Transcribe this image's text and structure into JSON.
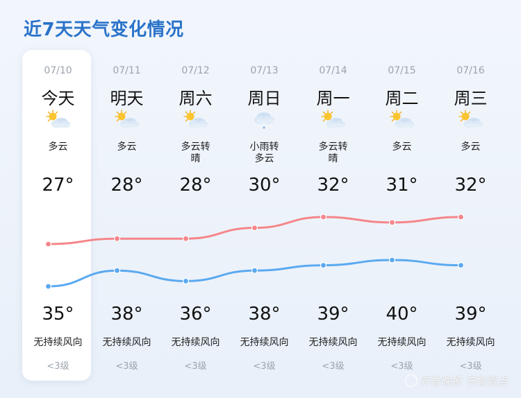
{
  "title": "近7天天气变化情况",
  "days": [
    {
      "date": "07/10",
      "name": "今天",
      "icon": "partly-cloudy-icon",
      "cond": [
        "多云"
      ],
      "hi": "27°",
      "lo": "35°",
      "wind": "无持续风向",
      "level": "<3级"
    },
    {
      "date": "07/11",
      "name": "明天",
      "icon": "partly-cloudy-icon",
      "cond": [
        "多云"
      ],
      "hi": "28°",
      "lo": "38°",
      "wind": "无持续风向",
      "level": "<3级"
    },
    {
      "date": "07/12",
      "name": "周六",
      "icon": "partly-cloudy-icon",
      "cond": [
        "多云转",
        "晴"
      ],
      "hi": "28°",
      "lo": "36°",
      "wind": "无持续风向",
      "level": "<3级"
    },
    {
      "date": "07/13",
      "name": "周日",
      "icon": "light-rain-icon",
      "cond": [
        "小雨转",
        "多云"
      ],
      "hi": "30°",
      "lo": "38°",
      "wind": "无持续风向",
      "level": "<3级"
    },
    {
      "date": "07/14",
      "name": "周一",
      "icon": "partly-cloudy-icon",
      "cond": [
        "多云转",
        "晴"
      ],
      "hi": "32°",
      "lo": "39°",
      "wind": "无持续风向",
      "level": "<3级"
    },
    {
      "date": "07/15",
      "name": "周二",
      "icon": "partly-cloudy-icon",
      "cond": [
        "多云"
      ],
      "hi": "31°",
      "lo": "40°",
      "wind": "无持续风向",
      "level": "<3级"
    },
    {
      "date": "07/16",
      "name": "周三",
      "icon": "partly-cloudy-icon",
      "cond": [
        "多云"
      ],
      "hi": "32°",
      "lo": "39°",
      "wind": "无持续风向",
      "level": "<3级"
    }
  ],
  "chart_data": {
    "type": "line",
    "categories": [
      "07/10",
      "07/11",
      "07/12",
      "07/13",
      "07/14",
      "07/15",
      "07/16"
    ],
    "series": [
      {
        "values": [
          27,
          28,
          28,
          30,
          32,
          31,
          32
        ],
        "color": "#f5868a"
      },
      {
        "values": [
          35,
          38,
          36,
          38,
          39,
          40,
          39
        ],
        "color": "#5aa9f0"
      }
    ]
  },
  "watermark": {
    "text1": "齐鲁晚报",
    "text2": "齐鲁壹点"
  }
}
